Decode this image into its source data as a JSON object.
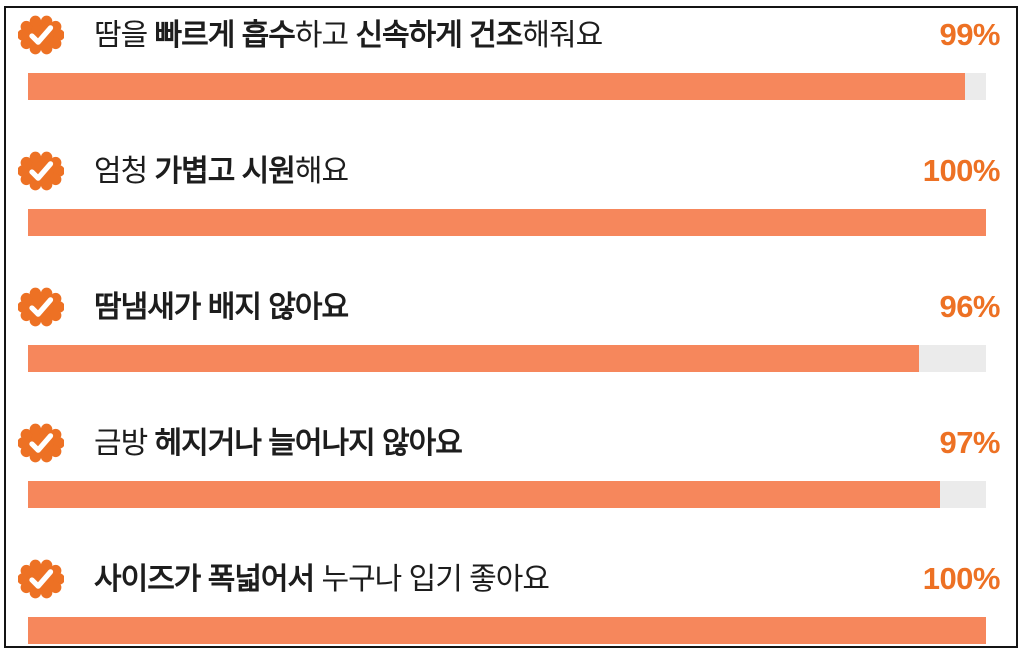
{
  "panel": {
    "description": "product-review benefit statements with approval percentages"
  },
  "colors": {
    "accent": "#ED7124",
    "bar_fill": "#F6875C",
    "bar_track": "#EBEBEB",
    "text": "#1D1D1D",
    "border": "#141414"
  },
  "rows": [
    {
      "segments": [
        {
          "text": "땀을 ",
          "bold": false
        },
        {
          "text": "빠르게 흡수",
          "bold": true
        },
        {
          "text": "하고 ",
          "bold": false
        },
        {
          "text": "신속하게 건조",
          "bold": true
        },
        {
          "text": "해줘요",
          "bold": false
        }
      ],
      "full_text": "땀을 빠르게 흡수하고 신속하게 건조해줘요",
      "percent_label": "99%",
      "value": 99,
      "bar_width_pct": 97.8
    },
    {
      "segments": [
        {
          "text": "엄청 ",
          "bold": false
        },
        {
          "text": "가볍고 시원",
          "bold": true
        },
        {
          "text": "해요",
          "bold": false
        }
      ],
      "full_text": "엄청 가볍고 시원해요",
      "percent_label": "100%",
      "value": 100,
      "bar_width_pct": 100
    },
    {
      "segments": [
        {
          "text": "땀냄새가 배지 않아요",
          "bold": true
        }
      ],
      "full_text": "땀냄새가 배지 않아요",
      "percent_label": "96%",
      "value": 96,
      "bar_width_pct": 93
    },
    {
      "segments": [
        {
          "text": "금방 ",
          "bold": false
        },
        {
          "text": "헤지거나 늘어나지 않아요",
          "bold": true
        }
      ],
      "full_text": "금방 헤지거나 늘어나지 않아요",
      "percent_label": "97%",
      "value": 97,
      "bar_width_pct": 95.2
    },
    {
      "segments": [
        {
          "text": "사이즈가 폭넓어서",
          "bold": true
        },
        {
          "text": " 누구나 입기 좋아요",
          "bold": false
        }
      ],
      "full_text": "사이즈가 폭넓어서 누구나 입기 좋아요",
      "percent_label": "100%",
      "value": 100,
      "bar_width_pct": 100
    }
  ],
  "icons": {
    "badge": "verified-badge-icon"
  },
  "chart_data": {
    "type": "bar",
    "orientation": "horizontal",
    "title": "",
    "categories": [
      "땀을 빠르게 흡수하고 신속하게 건조해줘요",
      "엄청 가볍고 시원해요",
      "땀냄새가 배지 않아요",
      "금방 헤지거나 늘어나지 않아요",
      "사이즈가 폭넓어서 누구나 입기 좋아요"
    ],
    "values": [
      99,
      100,
      96,
      97,
      100
    ],
    "value_labels": [
      "99%",
      "100%",
      "96%",
      "97%",
      "100%"
    ],
    "unit": "%",
    "xlim": [
      0,
      100
    ],
    "grid": false,
    "legend": false,
    "bar_color": "#F6875C",
    "track_color": "#EBEBEB",
    "label_color": "#ED7124"
  }
}
